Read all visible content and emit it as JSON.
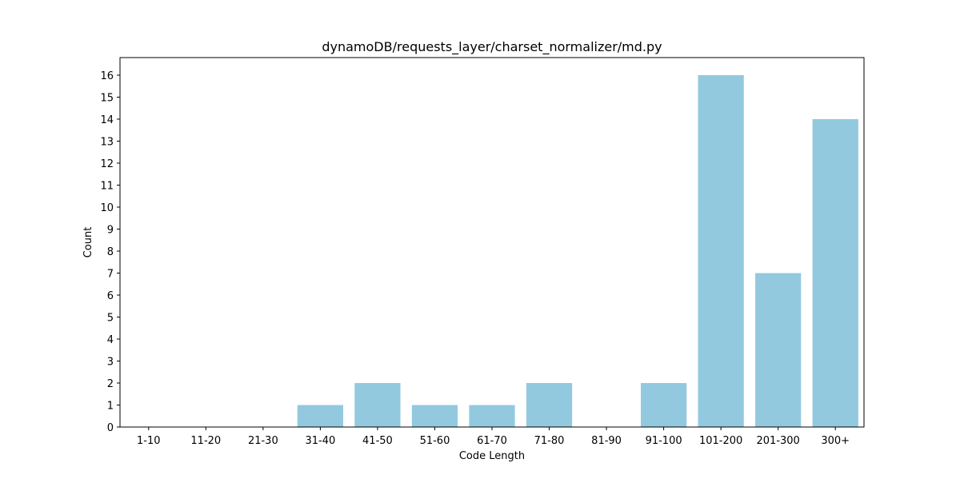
{
  "chart_data": {
    "type": "bar",
    "title": "dynamoDB/requests_layer/charset_normalizer/md.py",
    "xlabel": "Code Length",
    "ylabel": "Count",
    "categories": [
      "1-10",
      "11-20",
      "21-30",
      "31-40",
      "41-50",
      "51-60",
      "61-70",
      "71-80",
      "81-90",
      "91-100",
      "101-200",
      "201-300",
      "300+"
    ],
    "values": [
      0,
      0,
      0,
      1,
      2,
      1,
      1,
      2,
      0,
      2,
      16,
      7,
      14
    ],
    "ylim": [
      0,
      16.8
    ],
    "yticks": [
      0,
      1,
      2,
      3,
      4,
      5,
      6,
      7,
      8,
      9,
      10,
      11,
      12,
      13,
      14,
      15,
      16
    ],
    "bar_color": "#92c9df",
    "grid": false,
    "legend": "none"
  }
}
